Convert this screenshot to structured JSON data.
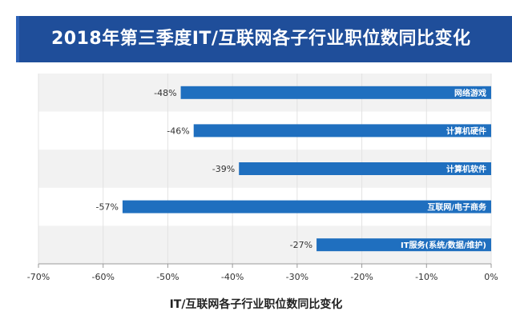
{
  "header": {
    "title": "2018年第三季度IT/互联网各子行业职位数同比变化"
  },
  "chart_data": {
    "type": "bar",
    "orientation": "horizontal",
    "title": "2018年第三季度IT/互联网各子行业职位数同比变化",
    "xlabel": "IT/互联网各子行业职位数同比变化",
    "ylabel": "",
    "categories": [
      "网络游戏",
      "计算机硬件",
      "计算机软件",
      "互联网/电子商务",
      "IT服务(系统/数据/维护)"
    ],
    "values": [
      -48,
      -46,
      -39,
      -57,
      -27
    ],
    "value_labels": [
      "-48%",
      "-46%",
      "-39%",
      "-57%",
      "-27%"
    ],
    "xlim": [
      -70,
      0
    ],
    "x_ticks": [
      -70,
      -60,
      -50,
      -40,
      -30,
      -20,
      -10,
      0
    ],
    "x_tick_labels": [
      "-70%",
      "-60%",
      "-50%",
      "-40%",
      "-30%",
      "-20%",
      "-10%",
      "0%"
    ],
    "grid": true,
    "legend": "none",
    "colors": {
      "bar": "#1f6fbf",
      "band": "#f2f2f2",
      "banner": "#1f4e9a"
    }
  }
}
